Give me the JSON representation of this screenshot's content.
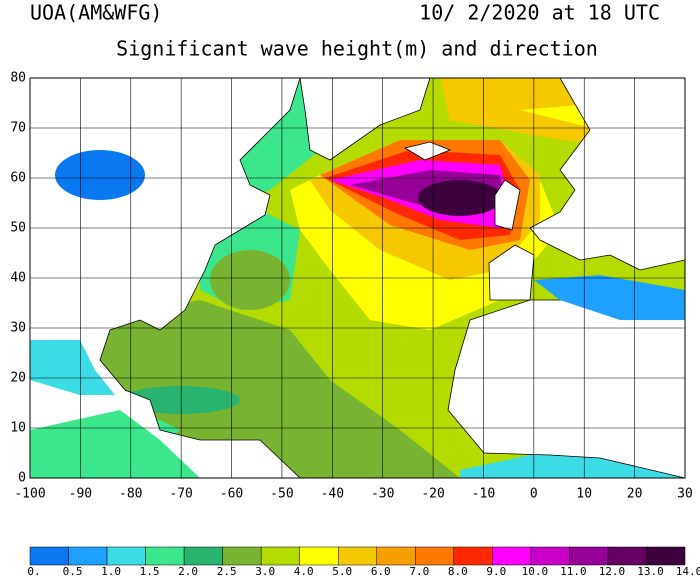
{
  "header": {
    "source": "UOA(AM&WFG)",
    "datetime": "10/ 2/2020 at 18 UTC"
  },
  "title": "Significant wave height(m) and direction",
  "map": {
    "xlim": [
      -100,
      30
    ],
    "ylim": [
      0,
      80
    ],
    "xticks": [
      -100,
      -90,
      -80,
      -70,
      -60,
      -50,
      -40,
      -30,
      -20,
      -10,
      0,
      10,
      20,
      30
    ],
    "yticks": [
      0,
      10,
      20,
      30,
      40,
      50,
      60,
      70,
      80
    ],
    "grid": true
  },
  "colorbar": {
    "levels": [
      {
        "value": 0,
        "label": "0."
      },
      0.5,
      {
        "value": 1,
        "label": "1.0"
      },
      1.5,
      {
        "value": 2,
        "label": "2.0"
      },
      2.5,
      {
        "value": 3,
        "label": "3.0"
      },
      {
        "value": 4,
        "label": "4.0"
      },
      {
        "value": 5,
        "label": "5.0"
      },
      {
        "value": 6,
        "label": "6.0"
      },
      {
        "value": 7,
        "label": "7.0"
      },
      {
        "value": 8,
        "label": "8.0"
      },
      {
        "value": 9,
        "label": "9.0"
      },
      {
        "value": 10,
        "label": "10.0"
      },
      {
        "value": 11,
        "label": "11.0"
      },
      {
        "value": 12,
        "label": "12.0"
      },
      {
        "value": 13,
        "label": "13.0"
      },
      {
        "value": 14,
        "label": "14.0"
      }
    ],
    "colors": [
      "#0a78f0",
      "#1ea0ff",
      "#3cdce6",
      "#3ce68c",
      "#28b46e",
      "#78b432",
      "#b4dc00",
      "#ffff00",
      "#f5c800",
      "#f5a000",
      "#ff7800",
      "#ff2800",
      "#ff00ff",
      "#c800c8",
      "#960096",
      "#640064",
      "#3c003c"
    ]
  }
}
